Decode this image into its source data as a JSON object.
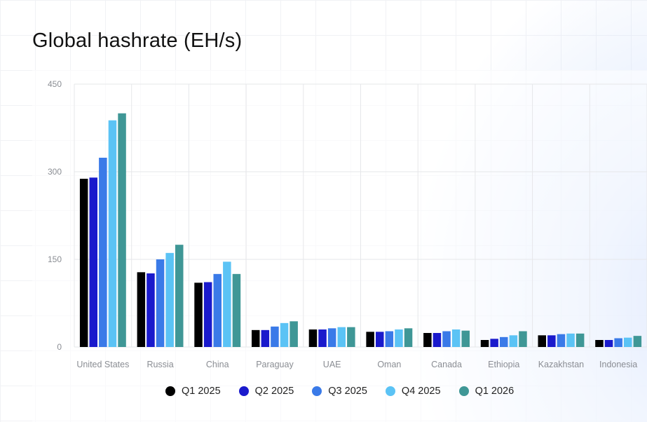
{
  "title": "Global hashrate (EH/s)",
  "chart_data": {
    "type": "bar",
    "title": "Global hashrate (EH/s)",
    "xlabel": "",
    "ylabel": "",
    "ylim": [
      0,
      450
    ],
    "yticks": [
      0,
      150,
      300,
      450
    ],
    "grid": true,
    "legend_position": "bottom",
    "categories": [
      "United States",
      "Russia",
      "China",
      "Paraguay",
      "UAE",
      "Oman",
      "Canada",
      "Ethiopia",
      "Kazakhstan",
      "Indonesia"
    ],
    "series": [
      {
        "name": "Q1 2025",
        "color": "#000000",
        "values": [
          288,
          128,
          110,
          29,
          30,
          26,
          24,
          12,
          20,
          12
        ]
      },
      {
        "name": "Q2 2025",
        "color": "#1a1acc",
        "values": [
          290,
          126,
          111,
          29,
          30,
          26,
          24,
          14,
          20,
          12
        ]
      },
      {
        "name": "Q3 2025",
        "color": "#3a7ae8",
        "values": [
          324,
          150,
          125,
          35,
          32,
          27,
          27,
          17,
          22,
          15
        ]
      },
      {
        "name": "Q4 2025",
        "color": "#5bc3f5",
        "values": [
          388,
          161,
          146,
          41,
          34,
          30,
          30,
          20,
          23,
          16
        ]
      },
      {
        "name": "Q1 2026",
        "color": "#3f9796",
        "values": [
          400,
          175,
          125,
          44,
          34,
          32,
          28,
          27,
          23,
          19
        ]
      }
    ]
  }
}
